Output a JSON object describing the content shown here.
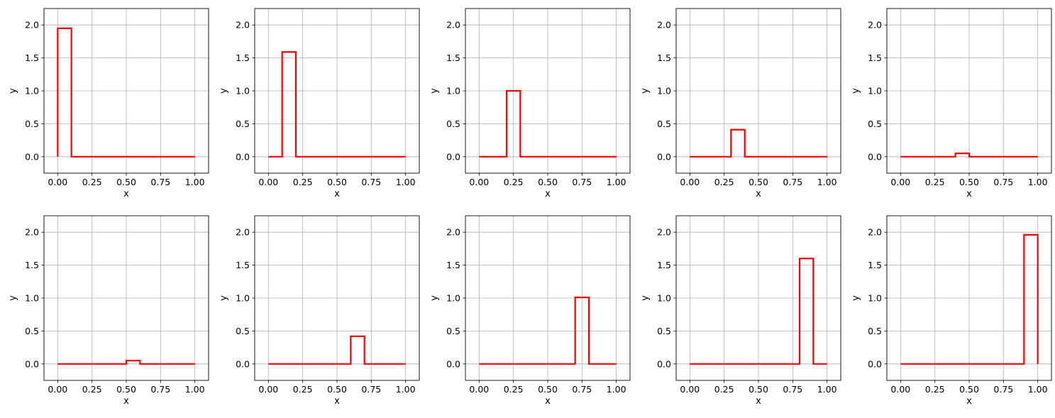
{
  "colors": {
    "line": "#ff0000",
    "grid": "#b0b0b0",
    "frame": "#000000"
  },
  "chart_data": [
    {
      "type": "line",
      "step": true,
      "xlabel": "x",
      "ylabel": "y",
      "xlim": [
        -0.1,
        1.1
      ],
      "ylim": [
        -0.25,
        2.25
      ],
      "grid": true,
      "xticks": [
        "0.00",
        "0.25",
        "0.50",
        "0.75",
        "1.00"
      ],
      "yticks": [
        "0.0",
        "0.5",
        "1.0",
        "1.5",
        "2.0"
      ],
      "series": [
        {
          "x": [
            0,
            0,
            0.1,
            0.1,
            1.0
          ],
          "y": [
            0,
            1.95,
            1.95,
            0,
            0
          ]
        }
      ]
    },
    {
      "type": "line",
      "step": true,
      "xlabel": "x",
      "ylabel": "y",
      "xlim": [
        -0.1,
        1.1
      ],
      "ylim": [
        -0.25,
        2.25
      ],
      "grid": true,
      "xticks": [
        "0.00",
        "0.25",
        "0.50",
        "0.75",
        "1.00"
      ],
      "yticks": [
        "0.0",
        "0.5",
        "1.0",
        "1.5",
        "2.0"
      ],
      "series": [
        {
          "x": [
            0,
            0.1,
            0.1,
            0.2,
            0.2,
            1.0
          ],
          "y": [
            0,
            0,
            1.59,
            1.59,
            0,
            0
          ]
        }
      ]
    },
    {
      "type": "line",
      "step": true,
      "xlabel": "x",
      "ylabel": "y",
      "xlim": [
        -0.1,
        1.1
      ],
      "ylim": [
        -0.25,
        2.25
      ],
      "grid": true,
      "xticks": [
        "0.00",
        "0.25",
        "0.50",
        "0.75",
        "1.00"
      ],
      "yticks": [
        "0.0",
        "0.5",
        "1.0",
        "1.5",
        "2.0"
      ],
      "series": [
        {
          "x": [
            0,
            0.2,
            0.2,
            0.3,
            0.3,
            1.0
          ],
          "y": [
            0,
            0,
            1.0,
            1.0,
            0,
            0
          ]
        }
      ]
    },
    {
      "type": "line",
      "step": true,
      "xlabel": "x",
      "ylabel": "y",
      "xlim": [
        -0.1,
        1.1
      ],
      "ylim": [
        -0.25,
        2.25
      ],
      "grid": true,
      "xticks": [
        "0.00",
        "0.25",
        "0.50",
        "0.75",
        "1.00"
      ],
      "yticks": [
        "0.0",
        "0.5",
        "1.0",
        "1.5",
        "2.0"
      ],
      "series": [
        {
          "x": [
            0,
            0.3,
            0.3,
            0.4,
            0.4,
            1.0
          ],
          "y": [
            0,
            0,
            0.41,
            0.41,
            0,
            0
          ]
        }
      ]
    },
    {
      "type": "line",
      "step": true,
      "xlabel": "x",
      "ylabel": "y",
      "xlim": [
        -0.1,
        1.1
      ],
      "ylim": [
        -0.25,
        2.25
      ],
      "grid": true,
      "xticks": [
        "0.00",
        "0.25",
        "0.50",
        "0.75",
        "1.00"
      ],
      "yticks": [
        "0.0",
        "0.5",
        "1.0",
        "1.5",
        "2.0"
      ],
      "series": [
        {
          "x": [
            0,
            0.4,
            0.4,
            0.5,
            0.5,
            1.0
          ],
          "y": [
            0,
            0,
            0.05,
            0.05,
            0,
            0
          ]
        }
      ]
    },
    {
      "type": "line",
      "step": true,
      "xlabel": "x",
      "ylabel": "y",
      "xlim": [
        -0.1,
        1.1
      ],
      "ylim": [
        -0.25,
        2.25
      ],
      "grid": true,
      "xticks": [
        "0.00",
        "0.25",
        "0.50",
        "0.75",
        "1.00"
      ],
      "yticks": [
        "0.0",
        "0.5",
        "1.0",
        "1.5",
        "2.0"
      ],
      "series": [
        {
          "x": [
            0,
            0.5,
            0.5,
            0.6,
            0.6,
            1.0
          ],
          "y": [
            0,
            0,
            0.05,
            0.05,
            0,
            0
          ]
        }
      ]
    },
    {
      "type": "line",
      "step": true,
      "xlabel": "x",
      "ylabel": "y",
      "xlim": [
        -0.1,
        1.1
      ],
      "ylim": [
        -0.25,
        2.25
      ],
      "grid": true,
      "xticks": [
        "0.00",
        "0.25",
        "0.50",
        "0.75",
        "1.00"
      ],
      "yticks": [
        "0.0",
        "0.5",
        "1.0",
        "1.5",
        "2.0"
      ],
      "series": [
        {
          "x": [
            0,
            0.6,
            0.6,
            0.7,
            0.7,
            1.0
          ],
          "y": [
            0,
            0,
            0.42,
            0.42,
            0,
            0
          ]
        }
      ]
    },
    {
      "type": "line",
      "step": true,
      "xlabel": "x",
      "ylabel": "y",
      "xlim": [
        -0.1,
        1.1
      ],
      "ylim": [
        -0.25,
        2.25
      ],
      "grid": true,
      "xticks": [
        "0.00",
        "0.25",
        "0.50",
        "0.75",
        "1.00"
      ],
      "yticks": [
        "0.0",
        "0.5",
        "1.0",
        "1.5",
        "2.0"
      ],
      "series": [
        {
          "x": [
            0,
            0.7,
            0.7,
            0.8,
            0.8,
            1.0
          ],
          "y": [
            0,
            0,
            1.01,
            1.01,
            0,
            0
          ]
        }
      ]
    },
    {
      "type": "line",
      "step": true,
      "xlabel": "x",
      "ylabel": "y",
      "xlim": [
        -0.1,
        1.1
      ],
      "ylim": [
        -0.25,
        2.25
      ],
      "grid": true,
      "xticks": [
        "0.00",
        "0.25",
        "0.50",
        "0.75",
        "1.00"
      ],
      "yticks": [
        "0.0",
        "0.5",
        "1.0",
        "1.5",
        "2.0"
      ],
      "series": [
        {
          "x": [
            0,
            0.8,
            0.8,
            0.9,
            0.9,
            1.0
          ],
          "y": [
            0,
            0,
            1.6,
            1.6,
            0,
            0
          ]
        }
      ]
    },
    {
      "type": "line",
      "step": true,
      "xlabel": "x",
      "ylabel": "y",
      "xlim": [
        -0.1,
        1.1
      ],
      "ylim": [
        -0.25,
        2.25
      ],
      "grid": true,
      "xticks": [
        "0.00",
        "0.25",
        "0.50",
        "0.75",
        "1.00"
      ],
      "yticks": [
        "0.0",
        "0.5",
        "1.0",
        "1.5",
        "2.0"
      ],
      "series": [
        {
          "x": [
            0,
            0.9,
            0.9,
            1.0,
            1.0
          ],
          "y": [
            0,
            0,
            1.96,
            1.96,
            0
          ]
        }
      ]
    }
  ]
}
